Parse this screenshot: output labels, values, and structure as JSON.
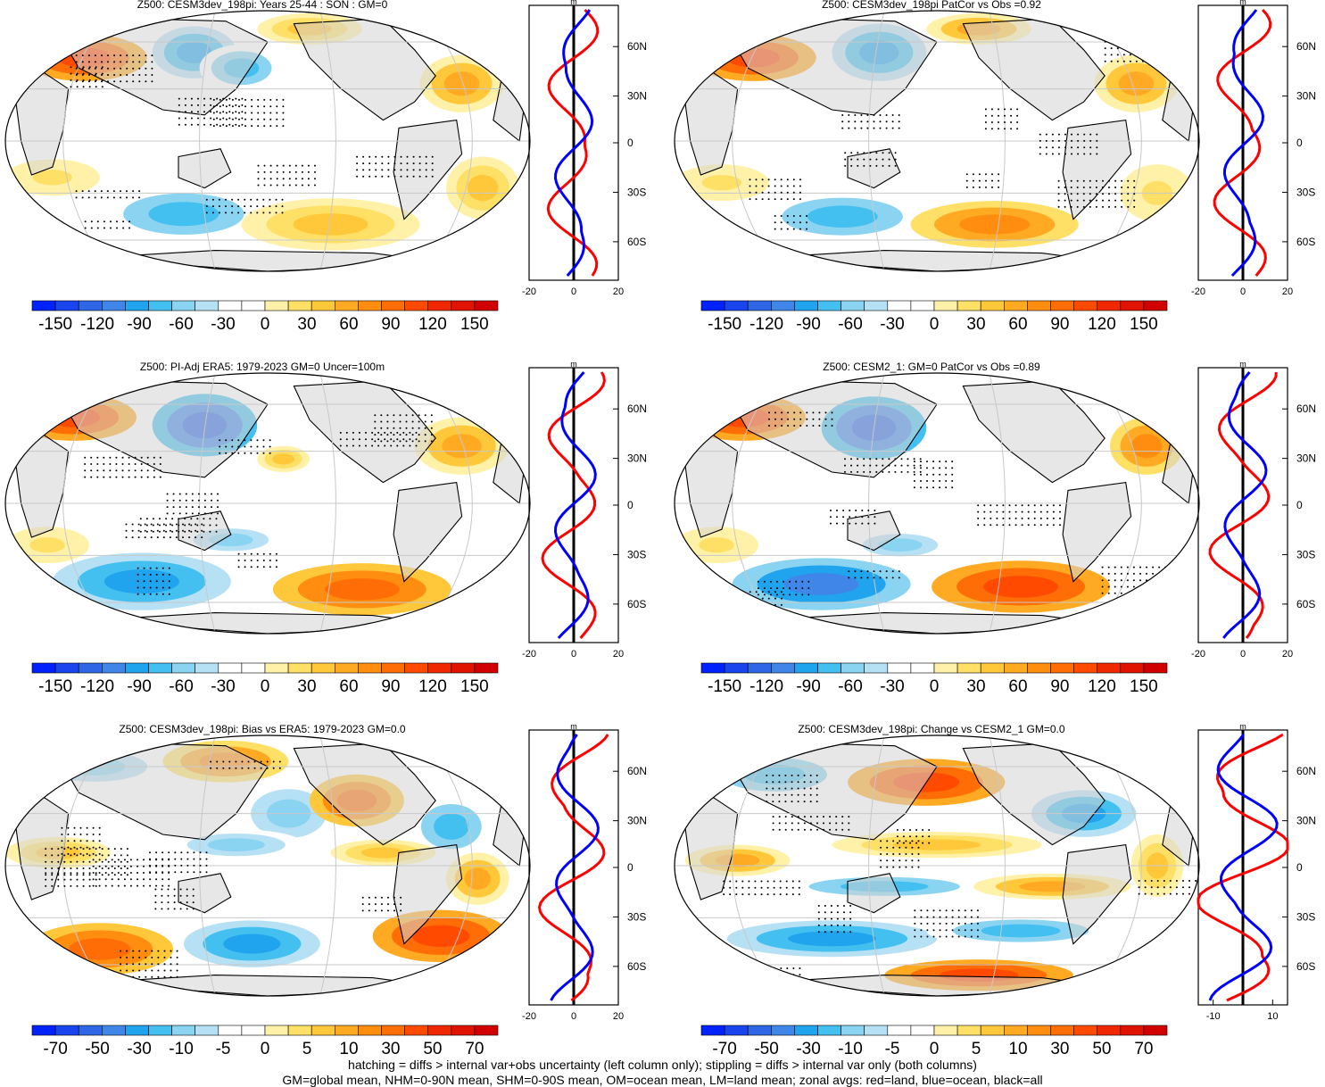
{
  "chart_data": [
    {
      "type": "heatmap",
      "title": "Z500: CESM3dev_198pi: Years 25-44 : SON : GM=0",
      "colorbar": {
        "levels": [
          "-150",
          "-120",
          "-90",
          "-60",
          "-30",
          "0",
          "30",
          "60",
          "90",
          "120",
          "150"
        ]
      },
      "side_profile": {
        "type": "line",
        "unit": "m",
        "xlim": [
          -20,
          20
        ],
        "xticks": [
          "-20",
          "0",
          "20"
        ],
        "yticks": [
          "60N",
          "30N",
          "0",
          "30S",
          "60S"
        ],
        "series": [
          {
            "name": "land",
            "color": "#ff0000"
          },
          {
            "name": "ocean",
            "color": "#0000ff"
          },
          {
            "name": "all",
            "color": "#000000"
          }
        ]
      }
    },
    {
      "type": "heatmap",
      "title": "Z500: CESM3dev_198pi PatCor vs Obs =0.92",
      "colorbar": {
        "levels": [
          "-150",
          "-120",
          "-90",
          "-60",
          "-30",
          "0",
          "30",
          "60",
          "90",
          "120",
          "150"
        ]
      },
      "side_profile": {
        "type": "line",
        "unit": "m",
        "xlim": [
          -20,
          20
        ],
        "xticks": [
          "-20",
          "0",
          "20"
        ],
        "yticks": [
          "60N",
          "30N",
          "0",
          "30S",
          "60S"
        ]
      }
    },
    {
      "type": "heatmap",
      "title": "Z500: PI-Adj ERA5: 1979-2023 GM=0 Uncer=100m",
      "colorbar": {
        "levels": [
          "-150",
          "-120",
          "-90",
          "-60",
          "-30",
          "0",
          "30",
          "60",
          "90",
          "120",
          "150"
        ]
      },
      "side_profile": {
        "type": "line",
        "unit": "m",
        "xlim": [
          -20,
          20
        ],
        "xticks": [
          "-20",
          "0",
          "20"
        ],
        "yticks": [
          "60N",
          "30N",
          "0",
          "30S",
          "60S"
        ]
      }
    },
    {
      "type": "heatmap",
      "title": "Z500: CESM2_1: GM=0 PatCor vs Obs =0.89",
      "colorbar": {
        "levels": [
          "-150",
          "-120",
          "-90",
          "-60",
          "-30",
          "0",
          "30",
          "60",
          "90",
          "120",
          "150"
        ]
      },
      "side_profile": {
        "type": "line",
        "unit": "m",
        "xlim": [
          -20,
          20
        ],
        "xticks": [
          "-20",
          "0",
          "20"
        ],
        "yticks": [
          "60N",
          "30N",
          "0",
          "30S",
          "60S"
        ]
      }
    },
    {
      "type": "heatmap",
      "title": "Z500: CESM3dev_198pi: Bias vs ERA5: 1979-2023  GM=0.0",
      "colorbar": {
        "levels": [
          "-70",
          "-50",
          "-30",
          "-10",
          "-5",
          "0",
          "5",
          "10",
          "30",
          "50",
          "70"
        ]
      },
      "side_profile": {
        "type": "line",
        "unit": "m",
        "xlim": [
          -20,
          20
        ],
        "xticks": [
          "-20",
          "0",
          "20"
        ],
        "yticks": [
          "60N",
          "30N",
          "0",
          "30S",
          "60S"
        ]
      }
    },
    {
      "type": "heatmap",
      "title": "Z500: CESM3dev_198pi: Change vs CESM2_1 GM=0.0",
      "colorbar": {
        "levels": [
          "-70",
          "-50",
          "-30",
          "-10",
          "-5",
          "0",
          "5",
          "10",
          "30",
          "50",
          "70"
        ]
      },
      "side_profile": {
        "type": "line",
        "unit": "m",
        "xlim": [
          -15,
          15
        ],
        "xticks": [
          "-10",
          "10"
        ],
        "yticks": [
          "60N",
          "30N",
          "0",
          "30S",
          "60S"
        ]
      }
    }
  ],
  "colors": {
    "land": "#d3d3d3",
    "scale": [
      "#0022ff",
      "#1a44ee",
      "#2e66e6",
      "#3f86e8",
      "#20a4ee",
      "#44c0f0",
      "#8ad4f2",
      "#b6e0f4",
      "#ffffff",
      "#ffffff",
      "#fff2a8",
      "#ffe066",
      "#ffc83a",
      "#ffaa22",
      "#ff8e10",
      "#ff6e06",
      "#ff4a00",
      "#f02800",
      "#e01200",
      "#d00000"
    ],
    "red_line": "#ff0000",
    "blue_line": "#0000ff"
  },
  "footer": {
    "line1": "hatching = diffs > internal var+obs uncertainty (left column only); stippling = diffs > internal var only (both columns)",
    "line2": "GM=global mean, NHM=0-90N mean, SHM=0-90S mean, OM=ocean mean, LM=land mean; zonal avgs: red=land, blue=ocean, black=all"
  }
}
